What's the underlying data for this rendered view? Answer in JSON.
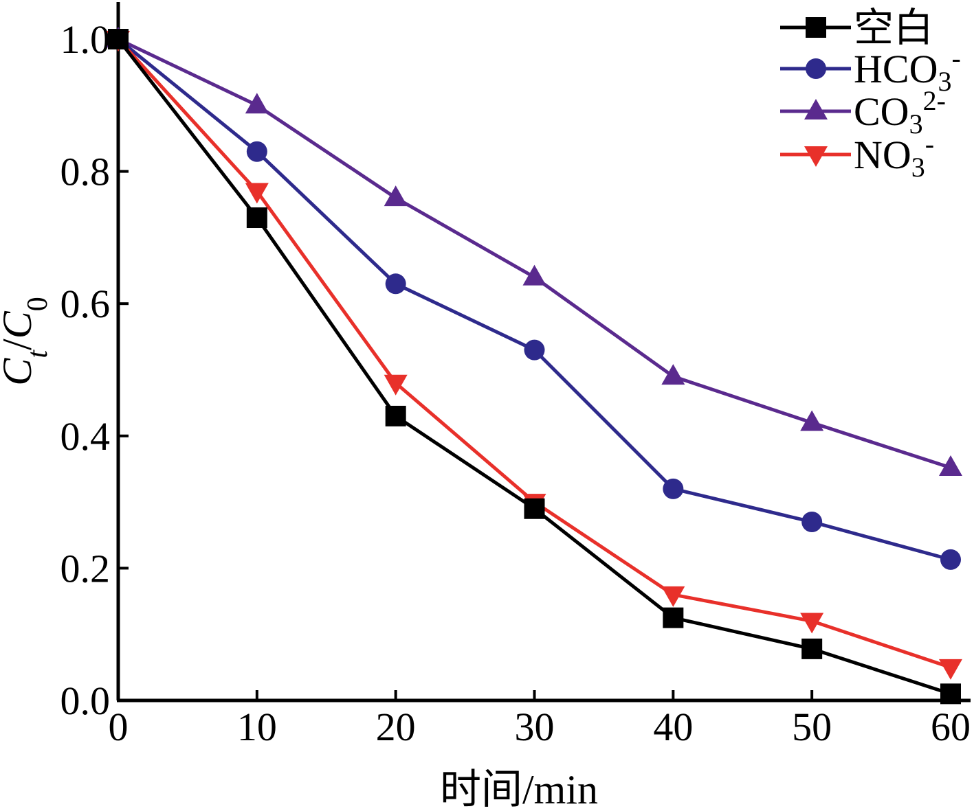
{
  "chart_data": {
    "type": "line",
    "xlabel": "时间/min",
    "ylabel_parts": [
      "C",
      "t",
      "/",
      "C",
      "0"
    ],
    "x": [
      0,
      10,
      20,
      30,
      40,
      50,
      60
    ],
    "xlim": [
      0,
      60
    ],
    "ylim": [
      0.0,
      1.0
    ],
    "xticks": [
      "0",
      "10",
      "20",
      "30",
      "40",
      "50",
      "60"
    ],
    "yticks": [
      "0.0",
      "0.2",
      "0.4",
      "0.6",
      "0.8",
      "1.0"
    ],
    "grid": false,
    "legend_position": "top-right",
    "series": [
      {
        "name": "空白",
        "marker": "square",
        "color": "#000000",
        "values": [
          1.0,
          0.73,
          0.43,
          0.29,
          0.125,
          0.078,
          0.01
        ]
      },
      {
        "name": "HCO3-",
        "name_parts": [
          "HCO",
          "3",
          "-"
        ],
        "marker": "circle",
        "color": "#2e2a8c",
        "values": [
          1.0,
          0.83,
          0.63,
          0.53,
          0.32,
          0.27,
          0.213
        ]
      },
      {
        "name": "CO32-",
        "name_parts": [
          "CO",
          "3",
          "2-"
        ],
        "marker": "triangle-up",
        "color": "#5a2a8e",
        "values": [
          1.0,
          0.9,
          0.76,
          0.64,
          0.49,
          0.42,
          0.352
        ]
      },
      {
        "name": "NO3-",
        "name_parts": [
          "NO",
          "3",
          "-"
        ],
        "marker": "triangle-down",
        "color": "#e8302a",
        "values": [
          1.0,
          0.77,
          0.48,
          0.3,
          0.16,
          0.12,
          0.05
        ]
      }
    ]
  }
}
